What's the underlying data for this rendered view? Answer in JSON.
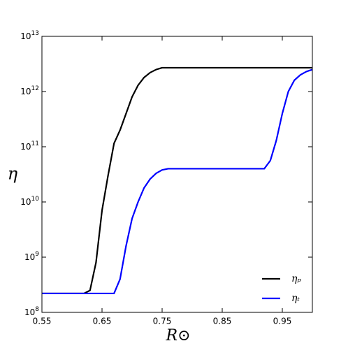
{
  "chart_data": {
    "type": "line",
    "x_label": "R⊙",
    "y_label": "η",
    "xlim": [
      0.55,
      1.0
    ],
    "xticks": [
      0.55,
      0.65,
      0.75,
      0.85,
      0.95
    ],
    "ylim": [
      100000000.0,
      10000000000000.0
    ],
    "y_scale": "log",
    "yticks": [
      {
        "value": 100000000.0,
        "label": "10",
        "exponent": "8"
      },
      {
        "value": 1000000000.0,
        "label": "10",
        "exponent": "9"
      },
      {
        "value": 10000000000.0,
        "label": "10",
        "exponent": "10"
      },
      {
        "value": 100000000000.0,
        "label": "10",
        "exponent": "11"
      },
      {
        "value": 1000000000000.0,
        "label": "10",
        "exponent": "12"
      },
      {
        "value": 10000000000000.0,
        "label": "10",
        "exponent": "13"
      }
    ],
    "legend": "lower right",
    "x": [
      0.55,
      0.56,
      0.57,
      0.58,
      0.59,
      0.6,
      0.61,
      0.62,
      0.63,
      0.64,
      0.65,
      0.66,
      0.67,
      0.68,
      0.69,
      0.7,
      0.71,
      0.72,
      0.73,
      0.74,
      0.75,
      0.76,
      0.77,
      0.78,
      0.79,
      0.8,
      0.81,
      0.82,
      0.83,
      0.84,
      0.85,
      0.86,
      0.87,
      0.88,
      0.89,
      0.9,
      0.91,
      0.92,
      0.93,
      0.94,
      0.95,
      0.96,
      0.97,
      0.98,
      0.99,
      1.0
    ],
    "series": [
      {
        "name": "ηₚ",
        "color": "#000000",
        "values": [
          220000000.0,
          220000000.0,
          220000000.0,
          220000000.0,
          220000000.0,
          220000000.0,
          220000000.0,
          220000000.0,
          250000000.0,
          800000000.0,
          7000000000.0,
          30000000000.0,
          115000000000.0,
          200000000000.0,
          400000000000.0,
          800000000000.0,
          1300000000000.0,
          1800000000000.0,
          2200000000000.0,
          2500000000000.0,
          2700000000000.0,
          2700000000000.0,
          2700000000000.0,
          2700000000000.0,
          2700000000000.0,
          2700000000000.0,
          2700000000000.0,
          2700000000000.0,
          2700000000000.0,
          2700000000000.0,
          2700000000000.0,
          2700000000000.0,
          2700000000000.0,
          2700000000000.0,
          2700000000000.0,
          2700000000000.0,
          2700000000000.0,
          2700000000000.0,
          2700000000000.0,
          2700000000000.0,
          2700000000000.0,
          2700000000000.0,
          2700000000000.0,
          2700000000000.0,
          2700000000000.0,
          2700000000000.0
        ]
      },
      {
        "name": "ηₜ",
        "color": "#0000ff",
        "values": [
          220000000.0,
          220000000.0,
          220000000.0,
          220000000.0,
          220000000.0,
          220000000.0,
          220000000.0,
          220000000.0,
          220000000.0,
          220000000.0,
          220000000.0,
          220000000.0,
          220000000.0,
          400000000.0,
          1600000000.0,
          5000000000.0,
          10000000000.0,
          18000000000.0,
          26000000000.0,
          33000000000.0,
          38000000000.0,
          40000000000.0,
          40000000000.0,
          40000000000.0,
          40000000000.0,
          40000000000.0,
          40000000000.0,
          40000000000.0,
          40000000000.0,
          40000000000.0,
          40000000000.0,
          40000000000.0,
          40000000000.0,
          40000000000.0,
          40000000000.0,
          40000000000.0,
          40000000000.0,
          40000000000.0,
          56000000000.0,
          130000000000.0,
          400000000000.0,
          1000000000000.0,
          1600000000000.0,
          2000000000000.0,
          2300000000000.0,
          2500000000000.0
        ]
      }
    ]
  }
}
